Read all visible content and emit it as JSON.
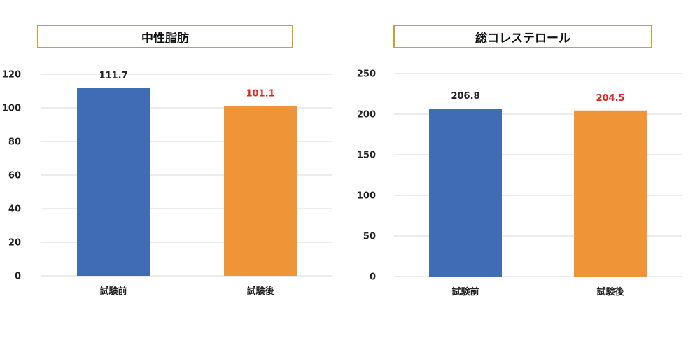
{
  "colors": {
    "before": "#3f6cb4",
    "after": "#f09537",
    "after_label": "#e0231f",
    "before_label": "#222222",
    "grid": "#d9d9d9",
    "title_border": "#c9a227"
  },
  "chart_data": [
    {
      "type": "bar",
      "title": "中性脂肪",
      "categories": [
        "試験前",
        "試験後"
      ],
      "values": [
        111.7,
        101.1
      ],
      "value_labels": [
        "111.7",
        "101.1"
      ],
      "ylim": [
        0,
        120
      ],
      "yticks": [
        "0",
        "20",
        "40",
        "60",
        "80",
        "100",
        "120"
      ],
      "grid": true
    },
    {
      "type": "bar",
      "title": "総コレステロール",
      "categories": [
        "試験前",
        "試験後"
      ],
      "values": [
        206.8,
        204.5
      ],
      "value_labels": [
        "206.8",
        "204.5"
      ],
      "ylim": [
        0,
        250
      ],
      "yticks": [
        "0",
        "50",
        "100",
        "150",
        "200",
        "250"
      ],
      "grid": true
    }
  ]
}
